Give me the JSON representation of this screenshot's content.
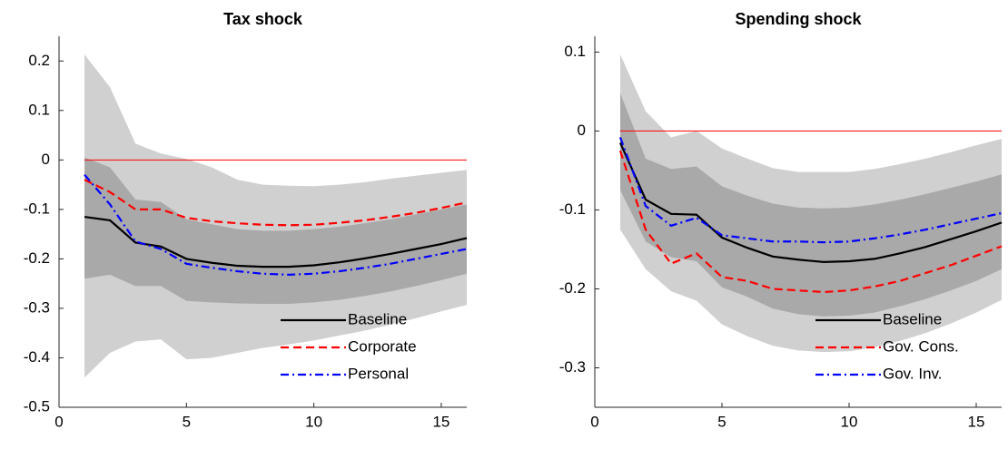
{
  "chart_data": [
    {
      "type": "line",
      "title": "Tax shock",
      "x": [
        1,
        2,
        3,
        4,
        5,
        6,
        7,
        8,
        9,
        10,
        11,
        12,
        13,
        14,
        15,
        16
      ],
      "xlim": [
        0,
        16
      ],
      "xticks": [
        0,
        5,
        10,
        15
      ],
      "ylim": [
        -0.5,
        0.25
      ],
      "yticks": [
        -0.5,
        -0.4,
        -0.3,
        -0.2,
        -0.1,
        0,
        0.1,
        0.2
      ],
      "legend": "lower right",
      "hline": {
        "value": 0,
        "color": "#ff0000"
      },
      "bands": [
        {
          "color": "#d0d0d0",
          "upper": [
            0.213,
            0.147,
            0.033,
            0.013,
            0.002,
            -0.015,
            -0.04,
            -0.05,
            -0.052,
            -0.053,
            -0.05,
            -0.045,
            -0.038,
            -0.032,
            -0.026,
            -0.02
          ],
          "lower": [
            -0.44,
            -0.39,
            -0.367,
            -0.363,
            -0.403,
            -0.4,
            -0.39,
            -0.38,
            -0.373,
            -0.365,
            -0.355,
            -0.345,
            -0.333,
            -0.32,
            -0.306,
            -0.293
          ]
        },
        {
          "color": "#a9a9a9",
          "upper": [
            0.005,
            -0.015,
            -0.08,
            -0.085,
            -0.12,
            -0.13,
            -0.14,
            -0.143,
            -0.143,
            -0.14,
            -0.135,
            -0.128,
            -0.12,
            -0.11,
            -0.1,
            -0.09
          ],
          "lower": [
            -0.24,
            -0.232,
            -0.255,
            -0.255,
            -0.285,
            -0.288,
            -0.29,
            -0.291,
            -0.291,
            -0.288,
            -0.283,
            -0.275,
            -0.266,
            -0.255,
            -0.243,
            -0.23
          ]
        }
      ],
      "series": [
        {
          "name": "Baseline",
          "color": "#000000",
          "dash": "solid",
          "values": [
            -0.115,
            -0.122,
            -0.167,
            -0.175,
            -0.2,
            -0.208,
            -0.214,
            -0.216,
            -0.216,
            -0.213,
            -0.207,
            -0.199,
            -0.19,
            -0.18,
            -0.17,
            -0.158
          ]
        },
        {
          "name": "Corporate",
          "color": "#ff0000",
          "dash": "dashed",
          "values": [
            -0.04,
            -0.065,
            -0.1,
            -0.1,
            -0.117,
            -0.124,
            -0.128,
            -0.131,
            -0.132,
            -0.131,
            -0.127,
            -0.122,
            -0.115,
            -0.107,
            -0.097,
            -0.086
          ]
        },
        {
          "name": "Personal",
          "color": "#0000ff",
          "dash": "dashdot",
          "values": [
            -0.03,
            -0.09,
            -0.165,
            -0.18,
            -0.21,
            -0.218,
            -0.225,
            -0.23,
            -0.232,
            -0.23,
            -0.225,
            -0.218,
            -0.21,
            -0.2,
            -0.19,
            -0.18
          ]
        }
      ]
    },
    {
      "type": "line",
      "title": "Spending shock",
      "x": [
        1,
        2,
        3,
        4,
        5,
        6,
        7,
        8,
        9,
        10,
        11,
        12,
        13,
        14,
        15,
        16
      ],
      "xlim": [
        0,
        16
      ],
      "xticks": [
        0,
        5,
        10,
        15
      ],
      "ylim": [
        -0.35,
        0.12
      ],
      "yticks": [
        -0.3,
        -0.2,
        -0.1,
        0,
        0.1
      ],
      "legend": "lower right",
      "hline": {
        "value": 0,
        "color": "#ff0000"
      },
      "bands": [
        {
          "color": "#d0d0d0",
          "upper": [
            0.097,
            0.025,
            -0.008,
            0.0,
            -0.022,
            -0.035,
            -0.047,
            -0.052,
            -0.052,
            -0.052,
            -0.048,
            -0.042,
            -0.035,
            -0.027,
            -0.018,
            -0.01
          ],
          "lower": [
            -0.125,
            -0.175,
            -0.203,
            -0.215,
            -0.245,
            -0.26,
            -0.272,
            -0.278,
            -0.28,
            -0.279,
            -0.274,
            -0.266,
            -0.256,
            -0.244,
            -0.23,
            -0.214
          ]
        },
        {
          "color": "#a9a9a9",
          "upper": [
            0.048,
            -0.035,
            -0.048,
            -0.045,
            -0.07,
            -0.082,
            -0.092,
            -0.097,
            -0.098,
            -0.097,
            -0.093,
            -0.087,
            -0.08,
            -0.072,
            -0.064,
            -0.055
          ],
          "lower": [
            -0.075,
            -0.14,
            -0.16,
            -0.165,
            -0.198,
            -0.21,
            -0.225,
            -0.232,
            -0.235,
            -0.234,
            -0.23,
            -0.222,
            -0.213,
            -0.202,
            -0.19,
            -0.175
          ]
        }
      ],
      "series": [
        {
          "name": "Baseline",
          "color": "#000000",
          "dash": "solid",
          "values": [
            -0.015,
            -0.087,
            -0.105,
            -0.106,
            -0.135,
            -0.148,
            -0.159,
            -0.163,
            -0.166,
            -0.165,
            -0.162,
            -0.155,
            -0.147,
            -0.137,
            -0.127,
            -0.116
          ]
        },
        {
          "name": "Gov. Cons.",
          "color": "#ff0000",
          "dash": "dashed",
          "values": [
            -0.025,
            -0.125,
            -0.168,
            -0.155,
            -0.185,
            -0.19,
            -0.2,
            -0.202,
            -0.204,
            -0.202,
            -0.197,
            -0.19,
            -0.18,
            -0.17,
            -0.158,
            -0.146
          ]
        },
        {
          "name": "Gov. Inv.",
          "color": "#0000ff",
          "dash": "dashdot",
          "values": [
            -0.008,
            -0.095,
            -0.12,
            -0.11,
            -0.132,
            -0.136,
            -0.14,
            -0.14,
            -0.141,
            -0.14,
            -0.136,
            -0.131,
            -0.125,
            -0.118,
            -0.111,
            -0.104
          ]
        }
      ]
    }
  ]
}
